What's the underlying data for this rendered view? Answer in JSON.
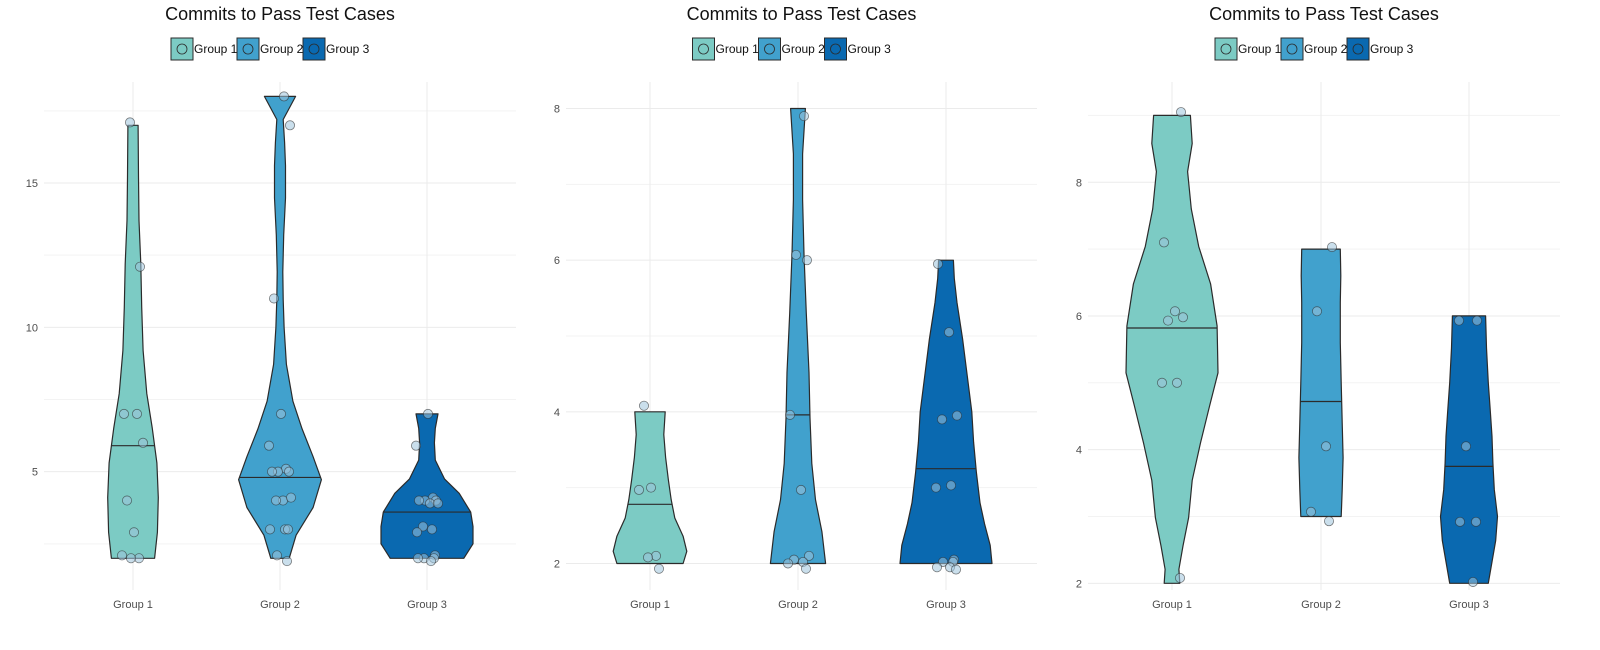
{
  "colors": {
    "group_1": "#7ccbc4",
    "group_2": "#41a1cd",
    "group_3": "#0a69b0",
    "outline": "#2b2b2b",
    "point_fill": "#9ec4dc"
  },
  "legend": {
    "symbol": "circle-icon",
    "items": [
      "Group 1",
      "Group 2",
      "Group 3"
    ]
  },
  "chart_data": [
    {
      "type": "violin",
      "title": "Commits to Pass Test Cases",
      "categories": [
        "Group 1",
        "Group 2",
        "Group 3"
      ],
      "ylim": [
        0.9,
        18.5
      ],
      "yticks": [
        5,
        10,
        15
      ],
      "grid": true,
      "legend_position": "top-center",
      "series": [
        {
          "name": "Group 1",
          "median": 5.9,
          "min": 2,
          "max": 17,
          "points": [
            17.1,
            12.1,
            7.0,
            7.0,
            6.0,
            4.0,
            2.9,
            2.1,
            2.0,
            2.0
          ]
        },
        {
          "name": "Group 2",
          "median": 4.8,
          "min": 2,
          "max": 18,
          "points": [
            18.0,
            17.0,
            11.0,
            7.0,
            5.9,
            5.1,
            5.0,
            5.0,
            5.0,
            4.0,
            4.1,
            4.0,
            3.0,
            3.0,
            3.0,
            2.1,
            1.9
          ]
        },
        {
          "name": "Group 3",
          "median": 3.6,
          "min": 2,
          "max": 7,
          "points": [
            7.0,
            5.9,
            4.1,
            4.0,
            4.0,
            4.0,
            3.9,
            3.9,
            3.1,
            3.0,
            2.9,
            2.1,
            2.0,
            2.0,
            2.0,
            1.9
          ]
        }
      ]
    },
    {
      "type": "violin",
      "title": "Commits to Pass Test Cases",
      "categories": [
        "Group 1",
        "Group 2",
        "Group 3"
      ],
      "ylim": [
        1.65,
        8.35
      ],
      "yticks": [
        2,
        4,
        6,
        8
      ],
      "grid": true,
      "legend_position": "top-center",
      "series": [
        {
          "name": "Group 1",
          "median": 2.78,
          "min": 2,
          "max": 4,
          "points": [
            4.08,
            3.0,
            2.97,
            2.1,
            2.08,
            1.93
          ]
        },
        {
          "name": "Group 2",
          "median": 3.96,
          "min": 2,
          "max": 8,
          "points": [
            7.9,
            6.07,
            6.0,
            3.96,
            2.97,
            2.1,
            2.05,
            2.02,
            2.0,
            1.93
          ]
        },
        {
          "name": "Group 3",
          "median": 3.25,
          "min": 2,
          "max": 6,
          "points": [
            5.95,
            5.05,
            3.95,
            3.9,
            3.03,
            3.0,
            2.05,
            2.02,
            2.02,
            1.95,
            1.95,
            1.92
          ]
        }
      ]
    },
    {
      "type": "violin",
      "title": "Commits to Pass Test Cases",
      "categories": [
        "Group 1",
        "Group 2",
        "Group 3"
      ],
      "ylim": [
        1.9,
        9.5
      ],
      "yticks": [
        2,
        4,
        6,
        8
      ],
      "grid": true,
      "legend_position": "top-center",
      "series": [
        {
          "name": "Group 1",
          "median": 5.82,
          "min": 2,
          "max": 9,
          "points": [
            9.05,
            7.1,
            6.07,
            5.98,
            5.93,
            5.0,
            5.0,
            2.08
          ]
        },
        {
          "name": "Group 2",
          "median": 4.72,
          "min": 3,
          "max": 7,
          "points": [
            7.03,
            6.07,
            4.05,
            3.07,
            2.93
          ]
        },
        {
          "name": "Group 3",
          "median": 3.75,
          "min": 2,
          "max": 6,
          "points": [
            5.93,
            5.93,
            4.05,
            2.92,
            2.92,
            2.02
          ]
        }
      ]
    }
  ]
}
